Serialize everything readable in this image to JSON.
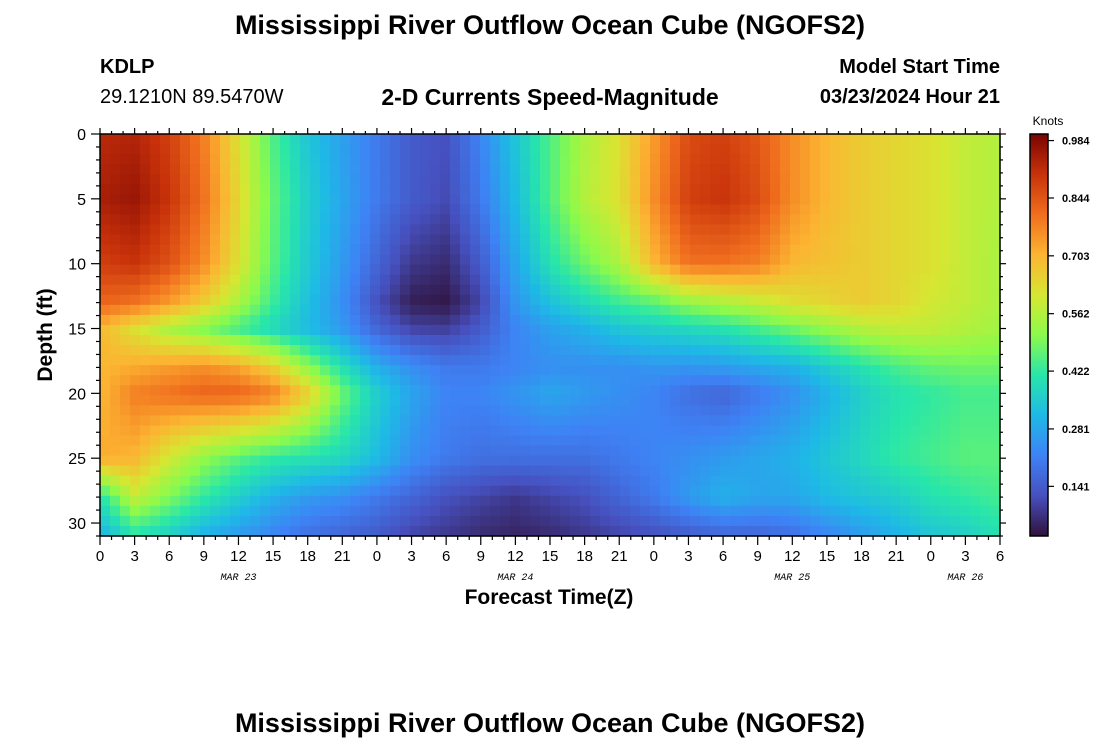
{
  "header": {
    "title": "Mississippi River Outflow Ocean Cube (NGOFS2)",
    "station": "KDLP",
    "coords": "29.1210N  89.5470W",
    "subtitle": "2-D Currents Speed-Magnitude",
    "model_start_label": "Model Start Time",
    "model_start_value": "03/23/2024 Hour 21"
  },
  "footer": {
    "title": "Mississippi River Outflow Ocean Cube (NGOFS2)"
  },
  "chart_data": {
    "type": "heatmap",
    "xlabel": "Forecast Time(Z)",
    "ylabel": "Depth (ft)",
    "x_range_hours": [
      0,
      78
    ],
    "ylim": [
      0,
      31
    ],
    "y_inverted": true,
    "x_tick_labels": [
      "0",
      "3",
      "6",
      "9",
      "12",
      "15",
      "18",
      "21",
      "0",
      "3",
      "6",
      "9",
      "12",
      "15",
      "18",
      "21",
      "0",
      "3",
      "6",
      "9",
      "12",
      "15",
      "18",
      "21",
      "0",
      "3",
      "6"
    ],
    "y_ticks": [
      0,
      5,
      10,
      15,
      20,
      25,
      30
    ],
    "date_labels": [
      {
        "label": "MAR 23",
        "hour": 12
      },
      {
        "label": "MAR 24",
        "hour": 36
      },
      {
        "label": "MAR 25",
        "hour": 60
      },
      {
        "label": "MAR 26",
        "hour": 75
      }
    ],
    "colorbar": {
      "unit": "Knots",
      "ticks": [
        "0.984",
        "0.844",
        "0.703",
        "0.562",
        "0.422",
        "0.281",
        "0.141"
      ],
      "tick_values": [
        0.984,
        0.844,
        0.703,
        0.562,
        0.422,
        0.281,
        0.141
      ],
      "range": [
        0.02,
        1.0
      ]
    },
    "grid_depths": [
      0,
      5,
      10,
      13,
      15,
      18,
      20,
      25,
      28,
      31
    ],
    "grid_hours": [
      0,
      3,
      6,
      9,
      12,
      15,
      18,
      21,
      24,
      27,
      30,
      33,
      36,
      39,
      42,
      45,
      48,
      51,
      54,
      57,
      60,
      63,
      66,
      69,
      72,
      75,
      78
    ],
    "values": [
      [
        0.92,
        0.93,
        0.88,
        0.78,
        0.62,
        0.45,
        0.34,
        0.27,
        0.2,
        0.14,
        0.12,
        0.22,
        0.34,
        0.45,
        0.55,
        0.62,
        0.74,
        0.86,
        0.88,
        0.84,
        0.76,
        0.7,
        0.66,
        0.64,
        0.62,
        0.58,
        0.56
      ],
      [
        0.94,
        0.96,
        0.9,
        0.8,
        0.64,
        0.47,
        0.36,
        0.28,
        0.2,
        0.14,
        0.11,
        0.2,
        0.32,
        0.45,
        0.56,
        0.62,
        0.76,
        0.88,
        0.9,
        0.86,
        0.76,
        0.7,
        0.66,
        0.64,
        0.62,
        0.58,
        0.56
      ],
      [
        0.88,
        0.9,
        0.85,
        0.76,
        0.62,
        0.46,
        0.35,
        0.26,
        0.16,
        0.08,
        0.06,
        0.14,
        0.28,
        0.4,
        0.48,
        0.55,
        0.7,
        0.8,
        0.8,
        0.78,
        0.7,
        0.68,
        0.66,
        0.64,
        0.62,
        0.58,
        0.55
      ],
      [
        0.82,
        0.8,
        0.74,
        0.66,
        0.55,
        0.43,
        0.33,
        0.24,
        0.12,
        0.04,
        0.03,
        0.1,
        0.25,
        0.33,
        0.38,
        0.43,
        0.46,
        0.52,
        0.55,
        0.58,
        0.62,
        0.64,
        0.66,
        0.64,
        0.6,
        0.58,
        0.55
      ],
      [
        0.7,
        0.62,
        0.55,
        0.5,
        0.44,
        0.38,
        0.32,
        0.26,
        0.16,
        0.1,
        0.09,
        0.14,
        0.22,
        0.27,
        0.3,
        0.34,
        0.36,
        0.38,
        0.4,
        0.44,
        0.48,
        0.52,
        0.56,
        0.58,
        0.58,
        0.56,
        0.54
      ],
      [
        0.7,
        0.72,
        0.74,
        0.76,
        0.73,
        0.66,
        0.52,
        0.4,
        0.3,
        0.24,
        0.2,
        0.2,
        0.22,
        0.24,
        0.24,
        0.24,
        0.25,
        0.25,
        0.26,
        0.28,
        0.3,
        0.35,
        0.4,
        0.44,
        0.47,
        0.48,
        0.48
      ],
      [
        0.7,
        0.78,
        0.8,
        0.82,
        0.82,
        0.78,
        0.66,
        0.48,
        0.36,
        0.28,
        0.22,
        0.22,
        0.25,
        0.28,
        0.26,
        0.24,
        0.22,
        0.18,
        0.16,
        0.2,
        0.24,
        0.3,
        0.36,
        0.4,
        0.42,
        0.44,
        0.44
      ],
      [
        0.72,
        0.7,
        0.6,
        0.52,
        0.46,
        0.42,
        0.4,
        0.38,
        0.32,
        0.24,
        0.2,
        0.18,
        0.18,
        0.18,
        0.18,
        0.2,
        0.22,
        0.24,
        0.26,
        0.28,
        0.3,
        0.34,
        0.38,
        0.42,
        0.44,
        0.46,
        0.46
      ],
      [
        0.4,
        0.58,
        0.5,
        0.42,
        0.36,
        0.3,
        0.26,
        0.24,
        0.2,
        0.16,
        0.12,
        0.1,
        0.08,
        0.1,
        0.12,
        0.16,
        0.2,
        0.26,
        0.3,
        0.28,
        0.28,
        0.32,
        0.34,
        0.36,
        0.4,
        0.42,
        0.44
      ],
      [
        0.3,
        0.4,
        0.36,
        0.3,
        0.26,
        0.22,
        0.18,
        0.16,
        0.14,
        0.1,
        0.08,
        0.06,
        0.05,
        0.06,
        0.08,
        0.1,
        0.12,
        0.14,
        0.16,
        0.16,
        0.18,
        0.22,
        0.26,
        0.3,
        0.34,
        0.36,
        0.4
      ]
    ]
  }
}
